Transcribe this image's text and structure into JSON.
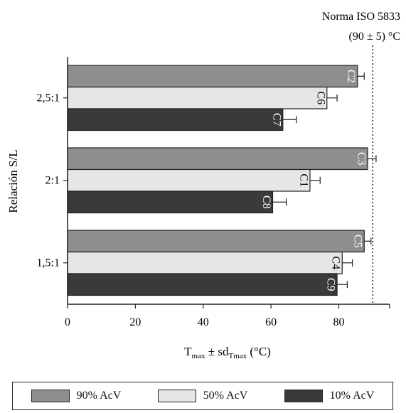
{
  "chart_data": {
    "type": "bar",
    "orientation": "horizontal",
    "reference_label_line1": "Norma ISO 5833",
    "reference_label_line2": "(90 ± 5) °C",
    "reference_value": 90,
    "ylabel": "Relación S/L",
    "xlabel_main": "T",
    "xlabel_sub1": "max",
    "xlabel_mid": " ± sd",
    "xlabel_sub2": "Tmax",
    "xlabel_tail": " (°C)",
    "xlim": [
      0,
      95
    ],
    "x_ticks": [
      0,
      20,
      40,
      60,
      80
    ],
    "categories": [
      "2,5:1",
      "2:1",
      "1,5:1"
    ],
    "series": [
      {
        "name": "90% AcV",
        "color": "#8e8e8e",
        "values": [
          85.5,
          88.5,
          87.5
        ],
        "errors": [
          2.0,
          2.5,
          2.0
        ],
        "labels": [
          "C2",
          "C3",
          "C5"
        ]
      },
      {
        "name": "50% AcV",
        "color": "#e6e6e6",
        "values": [
          76.5,
          71.5,
          81.0
        ],
        "errors": [
          3.0,
          3.0,
          3.0
        ],
        "labels": [
          "C6",
          "C1",
          "C4"
        ]
      },
      {
        "name": "10% AcV",
        "color": "#3a3a3a",
        "values": [
          63.5,
          60.5,
          79.5
        ],
        "errors": [
          4.0,
          4.0,
          3.0
        ],
        "labels": [
          "C7",
          "C8",
          "C9"
        ]
      }
    ]
  }
}
